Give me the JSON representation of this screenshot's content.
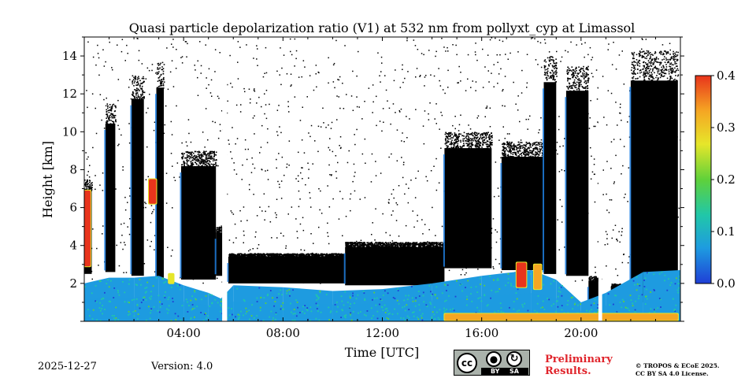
{
  "chart_data": {
    "type": "heatmap",
    "title": "Quasi particle depolarization ratio (V1) at 532 nm from pollyxt_cyp at Limassol",
    "xlabel": "Time [UTC]",
    "ylabel": "Height [km]",
    "x_range_hours": [
      0,
      24
    ],
    "y_range_km": [
      0,
      15
    ],
    "x_ticks": [
      {
        "value": 4,
        "label": "04:00"
      },
      {
        "value": 8,
        "label": "08:00"
      },
      {
        "value": 12,
        "label": "12:00"
      },
      {
        "value": 16,
        "label": "16:00"
      },
      {
        "value": 20,
        "label": "20:00"
      }
    ],
    "y_ticks": [
      {
        "value": 2,
        "label": "2"
      },
      {
        "value": 4,
        "label": "4"
      },
      {
        "value": 6,
        "label": "6"
      },
      {
        "value": 8,
        "label": "8"
      },
      {
        "value": 10,
        "label": "10"
      },
      {
        "value": 12,
        "label": "12"
      },
      {
        "value": 14,
        "label": "14"
      }
    ],
    "colorbar": {
      "range": [
        0,
        0.4
      ],
      "ticks": [
        {
          "value": 0.0,
          "label": "0.0"
        },
        {
          "value": 0.1,
          "label": "0.1"
        },
        {
          "value": 0.2,
          "label": "0.2"
        },
        {
          "value": 0.3,
          "label": "0.3"
        },
        {
          "value": 0.4,
          "label": "0.4"
        }
      ],
      "colormap": [
        "#1f3fd6",
        "#1e9be0",
        "#21c7a8",
        "#5fd13a",
        "#e6e62a",
        "#f5a623",
        "#e8341c"
      ]
    },
    "cloud_columns": [
      {
        "start": 0.0,
        "end": 0.3,
        "base_km": 2.5,
        "top_km": 7.5
      },
      {
        "start": 0.85,
        "end": 1.25,
        "base_km": 2.6,
        "top_km": 11.5
      },
      {
        "start": 1.9,
        "end": 2.4,
        "base_km": 2.4,
        "top_km": 13.0
      },
      {
        "start": 2.9,
        "end": 3.2,
        "base_km": 2.3,
        "top_km": 13.7
      },
      {
        "start": 3.9,
        "end": 5.3,
        "base_km": 2.2,
        "top_km": 9.0
      },
      {
        "start": 5.3,
        "end": 5.6,
        "base_km": 2.4,
        "top_km": 5.0
      },
      {
        "start": 5.8,
        "end": 10.5,
        "base_km": 2.0,
        "top_km": 3.6
      },
      {
        "start": 10.5,
        "end": 14.5,
        "base_km": 1.9,
        "top_km": 4.2
      },
      {
        "start": 14.5,
        "end": 16.4,
        "base_km": 2.8,
        "top_km": 10.0
      },
      {
        "start": 16.8,
        "end": 18.5,
        "base_km": 2.7,
        "top_km": 9.5
      },
      {
        "start": 18.5,
        "end": 19.0,
        "base_km": 2.5,
        "top_km": 14.0
      },
      {
        "start": 19.4,
        "end": 20.3,
        "base_km": 2.4,
        "top_km": 13.5
      },
      {
        "start": 20.3,
        "end": 20.7,
        "base_km": 0.3,
        "top_km": 2.4
      },
      {
        "start": 21.2,
        "end": 22.0,
        "base_km": 0.5,
        "top_km": 2.0
      },
      {
        "start": 22.0,
        "end": 23.9,
        "base_km": 1.0,
        "top_km": 14.3
      }
    ],
    "data_gaps": [
      {
        "start": 5.55,
        "end": 5.75
      },
      {
        "start": 20.7,
        "end": 20.85
      }
    ],
    "boundary_layer": [
      {
        "t": 0.0,
        "top_km": 2.0,
        "value": 0.06
      },
      {
        "t": 1.0,
        "top_km": 2.3,
        "value": 0.07
      },
      {
        "t": 2.0,
        "top_km": 2.3,
        "value": 0.06
      },
      {
        "t": 3.0,
        "top_km": 2.4,
        "value": 0.08
      },
      {
        "t": 4.0,
        "top_km": 1.9,
        "value": 0.07
      },
      {
        "t": 5.0,
        "top_km": 1.5,
        "value": 0.06
      },
      {
        "t": 5.5,
        "top_km": 1.2,
        "value": 0.06
      },
      {
        "t": 6.0,
        "top_km": 1.9,
        "value": 0.06
      },
      {
        "t": 8.0,
        "top_km": 1.8,
        "value": 0.06
      },
      {
        "t": 10.0,
        "top_km": 1.6,
        "value": 0.06
      },
      {
        "t": 12.0,
        "top_km": 1.7,
        "value": 0.06
      },
      {
        "t": 14.0,
        "top_km": 2.0,
        "value": 0.07
      },
      {
        "t": 16.0,
        "top_km": 2.4,
        "value": 0.07
      },
      {
        "t": 18.0,
        "top_km": 2.7,
        "value": 0.08
      },
      {
        "t": 19.0,
        "top_km": 2.2,
        "value": 0.07
      },
      {
        "t": 20.0,
        "top_km": 1.0,
        "value": 0.06
      },
      {
        "t": 21.0,
        "top_km": 1.5,
        "value": 0.06
      },
      {
        "t": 22.5,
        "top_km": 2.6,
        "value": 0.06
      },
      {
        "t": 24.0,
        "top_km": 2.7,
        "value": 0.06
      }
    ],
    "high_depol_features": [
      {
        "t_start": 0.0,
        "t_end": 0.25,
        "base_km": 2.9,
        "top_km": 6.9,
        "value": 0.4
      },
      {
        "t_start": 2.6,
        "t_end": 2.9,
        "base_km": 6.2,
        "top_km": 7.5,
        "value": 0.38
      },
      {
        "t_start": 3.4,
        "t_end": 3.6,
        "base_km": 2.0,
        "top_km": 2.5,
        "value": 0.25
      },
      {
        "t_start": 17.4,
        "t_end": 17.8,
        "base_km": 1.8,
        "top_km": 3.1,
        "value": 0.38
      },
      {
        "t_start": 18.1,
        "t_end": 18.4,
        "base_km": 1.7,
        "top_km": 3.0,
        "value": 0.36
      },
      {
        "t_start": 14.5,
        "t_end": 23.9,
        "base_km": 0.05,
        "top_km": 0.4,
        "value": 0.33
      }
    ]
  },
  "footer": {
    "date": "2025-12-27",
    "version": "Version: 4.0",
    "license_badge": {
      "main": "cc",
      "by": "BY",
      "sa": "SA"
    },
    "preliminary_line1": "Preliminary",
    "preliminary_line2": "Results.",
    "copyright_line1": "© TROPOS & ECoE 2025.",
    "copyright_line2": "CC BY SA 4.0 License."
  }
}
